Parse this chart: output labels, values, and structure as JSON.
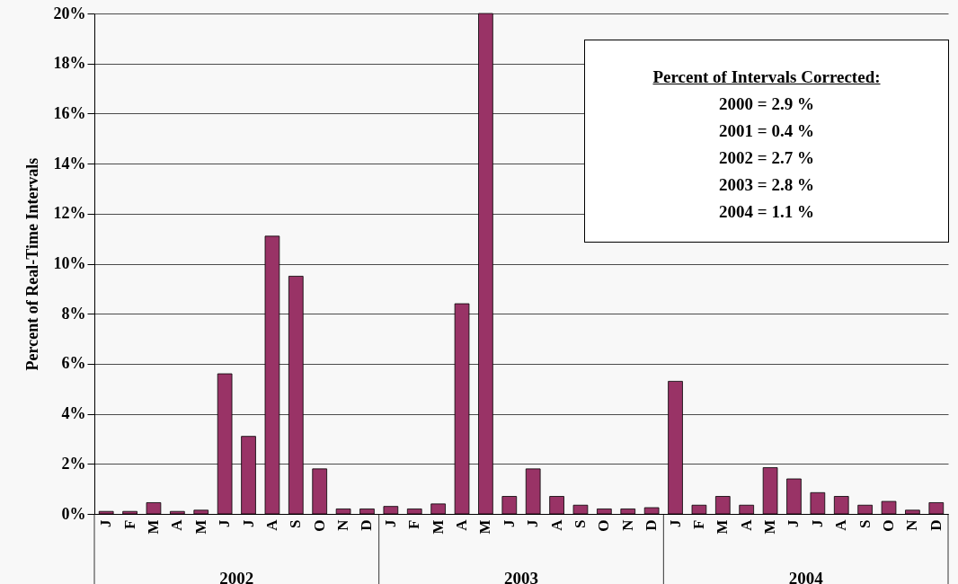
{
  "chart_data": {
    "type": "bar",
    "ylabel": "Percent of Real-Time Intervals",
    "categories": [
      "J",
      "F",
      "M",
      "A",
      "M",
      "J",
      "J",
      "A",
      "S",
      "O",
      "N",
      "D",
      "J",
      "F",
      "M",
      "A",
      "M",
      "J",
      "J",
      "A",
      "S",
      "O",
      "N",
      "D",
      "J",
      "F",
      "M",
      "A",
      "M",
      "J",
      "J",
      "A",
      "S",
      "O",
      "N",
      "D"
    ],
    "values": [
      0.1,
      0.1,
      0.45,
      0.1,
      0.15,
      5.6,
      3.1,
      11.1,
      9.5,
      1.8,
      0.2,
      0.2,
      0.3,
      0.2,
      0.4,
      8.4,
      20,
      0.7,
      1.8,
      0.7,
      0.35,
      0.2,
      0.2,
      0.25,
      5.3,
      0.35,
      0.7,
      0.35,
      1.85,
      1.4,
      0.85,
      0.7,
      0.35,
      0.5,
      0.15,
      0.45
    ],
    "color": "#993366",
    "ylim": [
      0,
      20
    ],
    "yticks": [
      {
        "value": 0,
        "label": "0%"
      },
      {
        "value": 2,
        "label": "2%"
      },
      {
        "value": 4,
        "label": "4%"
      },
      {
        "value": 6,
        "label": "6%"
      },
      {
        "value": 8,
        "label": "8%"
      },
      {
        "value": 10,
        "label": "10%"
      },
      {
        "value": 12,
        "label": "12%"
      },
      {
        "value": 14,
        "label": "14%"
      },
      {
        "value": 16,
        "label": "16%"
      },
      {
        "value": 18,
        "label": "18%"
      },
      {
        "value": 20,
        "label": "20%"
      }
    ],
    "grid": "y",
    "annotations": [
      "Percent of Intervals Corrected:",
      "2000 = 2.9 %",
      "2001 = 0.4 %",
      "2002 = 2.7 %",
      "2003 = 2.8 %",
      "2004 = 1.1 %",
      "2002",
      "2003",
      "2004"
    ]
  }
}
